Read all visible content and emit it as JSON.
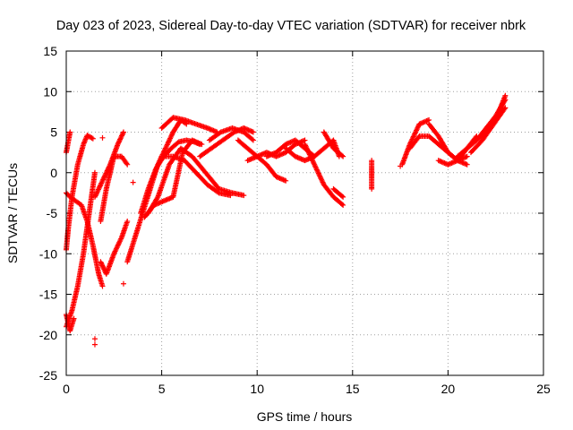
{
  "chart_data": {
    "type": "scatter",
    "title": "Day 023 of 2023, Sidereal Day-to-day VTEC variation (SDTVAR) for receiver nbrk",
    "xlabel": "GPS time / hours",
    "ylabel": "SDTVAR / TECUs",
    "xlim": [
      0,
      25
    ],
    "ylim": [
      -25,
      15
    ],
    "xticks": [
      "0",
      "5",
      "10",
      "15",
      "20",
      "25"
    ],
    "yticks": [
      "15",
      "10",
      "5",
      "0",
      "-5",
      "-10",
      "-15",
      "-20",
      "-25"
    ],
    "grid": true,
    "marker": "+",
    "color": "#ff0000",
    "tracks": [
      {
        "x": [
          0.0,
          0.1,
          0.3,
          0.6,
          0.9,
          1.1,
          1.4
        ],
        "y": [
          -9.5,
          -7.0,
          -3.0,
          1.0,
          3.5,
          4.6,
          4.2
        ]
      },
      {
        "x": [
          0.0,
          0.2,
          0.5,
          0.8,
          1.1,
          1.4,
          1.7,
          1.9
        ],
        "y": [
          -2.5,
          -3.0,
          -3.5,
          -4.0,
          -6.0,
          -9.0,
          -12.5,
          -14.0
        ]
      },
      {
        "x": [
          0.0,
          0.3,
          0.6,
          0.9,
          1.2,
          1.5
        ],
        "y": [
          -19.0,
          -17.0,
          -14.0,
          -10.0,
          -5.0,
          0.0
        ]
      },
      {
        "x": [
          0.0,
          0.2
        ],
        "y": [
          2.5,
          5.0
        ]
      },
      {
        "x": [
          0.0,
          0.2,
          0.4
        ],
        "y": [
          -17.5,
          -19.5,
          -18.0
        ]
      },
      {
        "x": [
          1.5,
          1.9,
          2.3,
          2.7,
          3.0
        ],
        "y": [
          -3.0,
          -1.0,
          1.0,
          3.5,
          5.0
        ]
      },
      {
        "x": [
          1.8,
          2.1,
          2.5,
          2.9,
          3.2
        ],
        "y": [
          -6.0,
          -2.0,
          2.0,
          2.0,
          1.0
        ]
      },
      {
        "x": [
          1.8,
          2.1,
          2.5,
          2.9,
          3.2
        ],
        "y": [
          -11.0,
          -12.5,
          -10.0,
          -8.0,
          -6.0
        ]
      },
      {
        "x": [
          3.2,
          3.6,
          4.0,
          4.4,
          4.8,
          5.2,
          5.6,
          6.0,
          6.3
        ],
        "y": [
          -11.0,
          -8.0,
          -5.0,
          -2.0,
          1.0,
          3.0,
          5.0,
          6.5,
          6.0
        ]
      },
      {
        "x": [
          3.9,
          4.3,
          4.7,
          5.1,
          5.5,
          5.9,
          6.3,
          6.7,
          7.0
        ],
        "y": [
          -5.0,
          -2.0,
          0.5,
          2.0,
          3.0,
          3.8,
          4.0,
          3.8,
          3.5
        ]
      },
      {
        "x": [
          4.1,
          4.6,
          5.1,
          5.6,
          6.1,
          6.6,
          7.1
        ],
        "y": [
          -5.5,
          -4.0,
          -3.5,
          -3.0,
          2.5,
          4.0,
          3.5
        ]
      },
      {
        "x": [
          4.3,
          4.8,
          5.4,
          6.0,
          6.6,
          7.3,
          8.0,
          8.7,
          9.3
        ],
        "y": [
          -5.0,
          -3.0,
          1.0,
          3.0,
          2.0,
          0.0,
          -2.0,
          -2.5,
          -2.8
        ]
      },
      {
        "x": [
          5.0,
          5.6,
          6.2,
          6.8,
          7.4,
          8.0,
          8.6
        ],
        "y": [
          2.0,
          2.0,
          1.5,
          0.0,
          -1.5,
          -2.5,
          -2.8
        ]
      },
      {
        "x": [
          5.0,
          5.6,
          6.2,
          6.8,
          7.4,
          7.9
        ],
        "y": [
          5.5,
          6.8,
          6.5,
          6.0,
          5.5,
          5.0
        ]
      },
      {
        "x": [
          7.0,
          7.6,
          8.2,
          8.8,
          9.3,
          9.8
        ],
        "y": [
          2.0,
          3.0,
          4.0,
          5.0,
          5.5,
          5.0
        ]
      },
      {
        "x": [
          7.5,
          8.1,
          8.7,
          9.3,
          9.8
        ],
        "y": [
          4.0,
          5.0,
          5.5,
          5.0,
          4.0
        ]
      },
      {
        "x": [
          9.0,
          9.5,
          10.0,
          10.5,
          11.0,
          11.5
        ],
        "y": [
          4.0,
          3.0,
          2.0,
          1.0,
          -0.5,
          -1.0
        ]
      },
      {
        "x": [
          9.5,
          10.0,
          10.5,
          11.0,
          11.5,
          12.0,
          12.5
        ],
        "y": [
          1.5,
          2.0,
          2.5,
          2.0,
          2.5,
          3.5,
          4.0
        ]
      },
      {
        "x": [
          10.5,
          11.0,
          11.5,
          12.0,
          12.5,
          13.0
        ],
        "y": [
          2.0,
          2.5,
          3.5,
          4.0,
          3.0,
          2.0
        ]
      },
      {
        "x": [
          11.5,
          12.0,
          12.5,
          13.0,
          13.5,
          14.0,
          14.3
        ],
        "y": [
          3.0,
          2.0,
          1.5,
          2.0,
          3.0,
          4.0,
          2.0
        ]
      },
      {
        "x": [
          12.5,
          13.0,
          13.5,
          14.0,
          14.5
        ],
        "y": [
          3.5,
          1.0,
          -1.5,
          -3.0,
          -4.0
        ]
      },
      {
        "x": [
          13.5,
          14.0,
          14.5
        ],
        "y": [
          5.0,
          3.0,
          2.0
        ]
      },
      {
        "x": [
          14.0,
          14.5
        ],
        "y": [
          -2.0,
          -3.0
        ]
      },
      {
        "x": [
          16.0,
          16.0,
          16.0
        ],
        "y": [
          1.5,
          0.0,
          -2.0
        ]
      },
      {
        "x": [
          17.6,
          18.0,
          18.5,
          19.0
        ],
        "y": [
          1.0,
          3.5,
          6.0,
          6.5
        ]
      },
      {
        "x": [
          18.0,
          18.5,
          19.0,
          19.5,
          20.0,
          20.5,
          21.0
        ],
        "y": [
          3.0,
          4.5,
          4.5,
          3.5,
          2.5,
          1.5,
          1.0
        ]
      },
      {
        "x": [
          19.0,
          19.5,
          20.0,
          20.5,
          21.0
        ],
        "y": [
          6.0,
          4.5,
          2.5,
          1.5,
          2.0
        ]
      },
      {
        "x": [
          19.5,
          20.0,
          20.5,
          21.0,
          21.5
        ],
        "y": [
          1.5,
          1.0,
          1.5,
          3.0,
          4.5
        ]
      },
      {
        "x": [
          20.5,
          21.0,
          21.5,
          22.0,
          22.5,
          23.0
        ],
        "y": [
          2.0,
          3.0,
          4.0,
          5.0,
          6.5,
          9.5
        ]
      },
      {
        "x": [
          21.5,
          22.0,
          22.5,
          23.0
        ],
        "y": [
          4.0,
          5.5,
          7.0,
          9.0
        ]
      },
      {
        "x": [
          21.2,
          21.8,
          22.4,
          23.0
        ],
        "y": [
          2.5,
          4.0,
          6.0,
          8.0
        ]
      }
    ],
    "isolated_points": [
      {
        "x": 1.9,
        "y": 4.3
      },
      {
        "x": 3.0,
        "y": -13.7
      },
      {
        "x": 3.5,
        "y": -1.2
      },
      {
        "x": 17.5,
        "y": 0.8
      },
      {
        "x": 1.5,
        "y": -20.5
      },
      {
        "x": 1.5,
        "y": -21.2
      }
    ]
  }
}
